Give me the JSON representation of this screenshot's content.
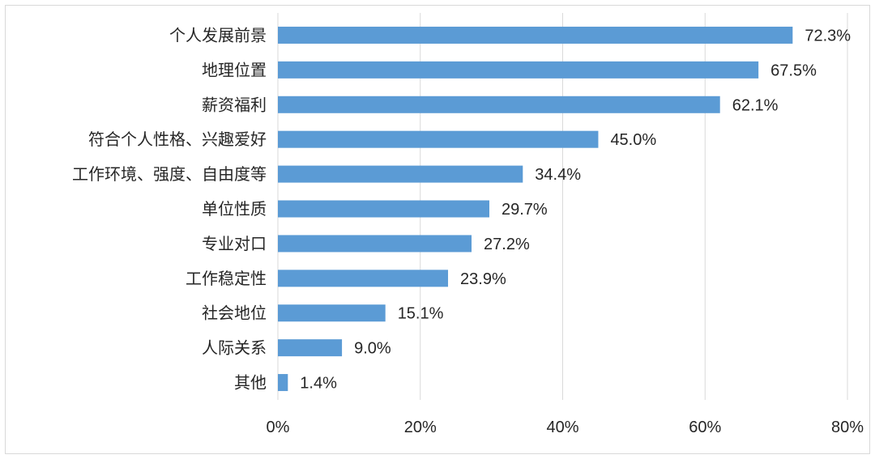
{
  "chart_data": {
    "type": "bar",
    "orientation": "horizontal",
    "categories": [
      "个人发展前景",
      "地理位置",
      "薪资福利",
      "符合个人性格、兴趣爱好",
      "工作环境、强度、自由度等",
      "单位性质",
      "专业对口",
      "工作稳定性",
      "社会地位",
      "人际关系",
      "其他"
    ],
    "values": [
      72.3,
      67.5,
      62.1,
      45.0,
      34.4,
      29.7,
      27.2,
      23.9,
      15.1,
      9.0,
      1.4
    ],
    "value_labels": [
      "72.3%",
      "67.5%",
      "62.1%",
      "45.0%",
      "34.4%",
      "29.7%",
      "27.2%",
      "23.9%",
      "15.1%",
      "9.0%",
      "1.4%"
    ],
    "xticks": [
      "0%",
      "20%",
      "40%",
      "60%",
      "80%"
    ],
    "xtick_values": [
      0,
      20,
      40,
      60,
      80
    ],
    "xlim": [
      0,
      80
    ],
    "title": "",
    "xlabel": "",
    "ylabel": "",
    "grid": "vertical",
    "legend": "none",
    "bar_color": "#5b9bd5",
    "grid_color": "#d9d9d9"
  }
}
